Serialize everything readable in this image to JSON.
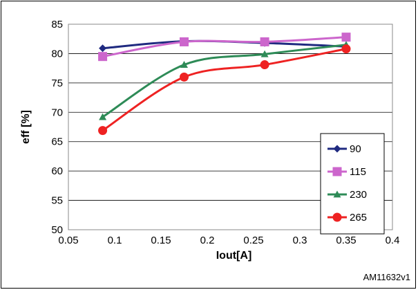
{
  "chart_data": {
    "type": "line",
    "title": "",
    "xlabel": "Iout[A]",
    "ylabel": "eff [%]",
    "xlim": [
      0.05,
      0.4
    ],
    "ylim": [
      50,
      85
    ],
    "x_ticks": [
      "0.05",
      "0.1",
      "0.15",
      "0.2",
      "0.25",
      "0.3",
      "0.35",
      "0.4"
    ],
    "y_ticks": [
      "50",
      "55",
      "60",
      "65",
      "70",
      "75",
      "80",
      "85"
    ],
    "grid": "horizontal",
    "legend_position": "bottom-right",
    "reference_label": "AM11632v1",
    "series": [
      {
        "name": "90",
        "color": "#1f2a80",
        "marker": "diamond",
        "x": [
          0.087,
          0.175,
          0.262,
          0.35
        ],
        "y": [
          80.9,
          82.1,
          81.8,
          81.2
        ]
      },
      {
        "name": "115",
        "color": "#cc66cc",
        "marker": "square",
        "x": [
          0.087,
          0.175,
          0.262,
          0.35
        ],
        "y": [
          79.5,
          82.0,
          82.0,
          82.8
        ]
      },
      {
        "name": "230",
        "color": "#2e8b57",
        "marker": "triangle",
        "x": [
          0.087,
          0.175,
          0.262,
          0.35
        ],
        "y": [
          69.2,
          78.1,
          79.9,
          81.5
        ]
      },
      {
        "name": "265",
        "color": "#ee2222",
        "marker": "circle",
        "x": [
          0.087,
          0.175,
          0.262,
          0.35
        ],
        "y": [
          66.9,
          76.0,
          78.1,
          80.8
        ]
      }
    ]
  }
}
